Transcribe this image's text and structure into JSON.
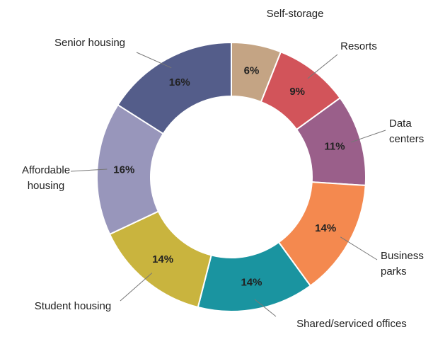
{
  "chart_data": {
    "type": "donut",
    "categories": [
      "Self-storage",
      "Resorts",
      "Data\ncenters",
      "Business\nparks",
      "Shared/serviced offices",
      "Student housing",
      "Affordable\nhousing",
      "Senior housing"
    ],
    "values": [
      6,
      9,
      11,
      14,
      14,
      14,
      16,
      16
    ],
    "value_labels": [
      "6%",
      "9%",
      "11%",
      "14%",
      "14%",
      "14%",
      "16%",
      "16%"
    ],
    "colors": [
      "#c4a484",
      "#d2545a",
      "#9a5f8a",
      "#f4894f",
      "#1a94a0",
      "#c9b43e",
      "#9896bb",
      "#545d8a"
    ]
  }
}
